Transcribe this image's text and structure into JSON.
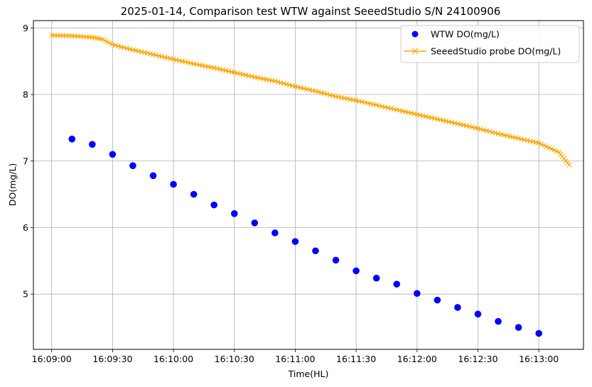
{
  "chart_data": {
    "type": "scatter",
    "title": "2025-01-14, Comparison test WTW against SeeedStudio S/N 24100906",
    "xlabel": "Time(HL)",
    "ylabel": "DO(mg/L)",
    "xlim": [
      "16:08:51",
      "16:13:22"
    ],
    "ylim": [
      4.17,
      9.11
    ],
    "x_ticks": [
      "16:09:00",
      "16:09:30",
      "16:10:00",
      "16:10:30",
      "16:11:00",
      "16:11:30",
      "16:12:00",
      "16:12:30",
      "16:13:00"
    ],
    "y_ticks": [
      5,
      6,
      7,
      8,
      9
    ],
    "grid": true,
    "legend_position": "top-right",
    "series": [
      {
        "name": "WTW DO(mg/L)",
        "type": "scatter",
        "marker": "circle",
        "color": "#0000ff",
        "points": [
          [
            "16:09:10",
            7.33
          ],
          [
            "16:09:20",
            7.25
          ],
          [
            "16:09:30",
            7.1
          ],
          [
            "16:09:40",
            6.93
          ],
          [
            "16:09:50",
            6.78
          ],
          [
            "16:10:00",
            6.65
          ],
          [
            "16:10:10",
            6.5
          ],
          [
            "16:10:20",
            6.34
          ],
          [
            "16:10:30",
            6.21
          ],
          [
            "16:10:40",
            6.07
          ],
          [
            "16:10:50",
            5.92
          ],
          [
            "16:11:00",
            5.79
          ],
          [
            "16:11:10",
            5.65
          ],
          [
            "16:11:20",
            5.51
          ],
          [
            "16:11:30",
            5.35
          ],
          [
            "16:11:40",
            5.24
          ],
          [
            "16:11:50",
            5.15
          ],
          [
            "16:12:00",
            5.01
          ],
          [
            "16:12:10",
            4.91
          ],
          [
            "16:12:20",
            4.8
          ],
          [
            "16:12:30",
            4.7
          ],
          [
            "16:12:40",
            4.59
          ],
          [
            "16:12:50",
            4.5
          ],
          [
            "16:13:00",
            4.41
          ]
        ]
      },
      {
        "name": "SeeedStudio probe DO(mg/L)",
        "type": "line",
        "marker": "x",
        "color": "#ffa500",
        "points": [
          [
            "16:09:00",
            8.89
          ],
          [
            "16:09:10",
            8.88
          ],
          [
            "16:09:20",
            8.86
          ],
          [
            "16:09:25",
            8.83
          ],
          [
            "16:09:30",
            8.75
          ],
          [
            "16:09:40",
            8.67
          ],
          [
            "16:09:50",
            8.6
          ],
          [
            "16:10:00",
            8.53
          ],
          [
            "16:10:10",
            8.46
          ],
          [
            "16:10:20",
            8.4
          ],
          [
            "16:10:30",
            8.33
          ],
          [
            "16:10:40",
            8.26
          ],
          [
            "16:10:50",
            8.2
          ],
          [
            "16:11:00",
            8.12
          ],
          [
            "16:11:10",
            8.05
          ],
          [
            "16:11:20",
            7.97
          ],
          [
            "16:11:30",
            7.91
          ],
          [
            "16:11:40",
            7.84
          ],
          [
            "16:11:50",
            7.77
          ],
          [
            "16:12:00",
            7.7
          ],
          [
            "16:12:10",
            7.63
          ],
          [
            "16:12:20",
            7.56
          ],
          [
            "16:12:30",
            7.49
          ],
          [
            "16:12:40",
            7.41
          ],
          [
            "16:12:50",
            7.34
          ],
          [
            "16:13:00",
            7.27
          ],
          [
            "16:13:05",
            7.2
          ],
          [
            "16:13:10",
            7.13
          ],
          [
            "16:13:15",
            6.94
          ]
        ]
      }
    ]
  }
}
